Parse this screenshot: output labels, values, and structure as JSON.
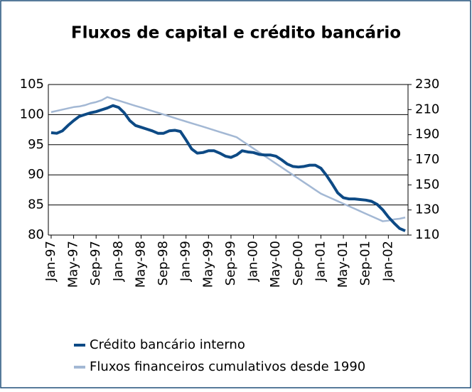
{
  "chart_data": {
    "type": "line",
    "title": "Fluxos de capital e crédito bancário",
    "categories": [
      "Jan-97",
      null,
      null,
      null,
      "May-97",
      null,
      null,
      null,
      "Sep-97",
      null,
      null,
      null,
      "Jan-98",
      null,
      null,
      null,
      "May-98",
      null,
      null,
      null,
      "Sep-98",
      null,
      null,
      null,
      "Jan-99",
      null,
      null,
      null,
      "May-99",
      null,
      null,
      null,
      "Sep-99",
      null,
      null,
      null,
      "Jan-00",
      null,
      null,
      null,
      "May-00",
      null,
      null,
      null,
      "Sep-00",
      null,
      null,
      null,
      "Jan-01",
      null,
      null,
      null,
      "May-01",
      null,
      null,
      null,
      "Sep-01",
      null,
      null,
      null,
      "Jan-02",
      null,
      null,
      null
    ],
    "series": [
      {
        "name": "Crédito bancário interno",
        "color": "#0d4a85",
        "values": [
          97,
          96.9,
          97.3,
          98.2,
          99,
          99.7,
          100,
          100.3,
          100.5,
          100.8,
          101.1,
          101.5,
          101.2,
          100.3,
          99,
          98.2,
          97.9,
          97.6,
          97.3,
          96.9,
          96.9,
          97.3,
          97.4,
          97.2,
          95.8,
          94.3,
          93.6,
          93.7,
          94,
          94,
          93.6,
          93.1,
          92.9,
          93.3,
          94,
          93.8,
          93.7,
          93.4,
          93.3,
          93.3,
          93.1,
          92.5,
          91.8,
          91.4,
          91.3,
          91.4,
          91.6,
          91.6,
          91.1,
          89.9,
          88.5,
          87,
          86.2,
          86,
          86,
          85.9,
          85.8,
          85.6,
          85.1,
          84.2,
          83,
          82,
          81.1,
          80.7
        ]
      },
      {
        "name": "Fluxos financeiros cumulativos desde 1990",
        "color": "#a3b8d4",
        "axis": "y2",
        "values": [
          208,
          209,
          210,
          211,
          212,
          212.5,
          213.5,
          215,
          216,
          217.5,
          220,
          218.6,
          217.2,
          215.8,
          214.4,
          213,
          211.7,
          210.3,
          208.9,
          207.5,
          206.1,
          204.7,
          203.3,
          201.9,
          200.5,
          199.1,
          197.8,
          196.4,
          195,
          193.6,
          192.2,
          190.8,
          189.4,
          188,
          185,
          182,
          179,
          176,
          173,
          170,
          167,
          164,
          161,
          158,
          155,
          152,
          149,
          146,
          143,
          141,
          139,
          137,
          135,
          133,
          131,
          129,
          127,
          125,
          123,
          121,
          121.5,
          122.5,
          123,
          124
        ]
      }
    ],
    "ylim": [
      80,
      105
    ],
    "yticks": [
      80,
      85,
      90,
      95,
      100,
      105
    ],
    "y2lim": [
      110,
      230
    ],
    "y2ticks": [
      110,
      130,
      150,
      170,
      190,
      210,
      230
    ],
    "grid": true
  }
}
